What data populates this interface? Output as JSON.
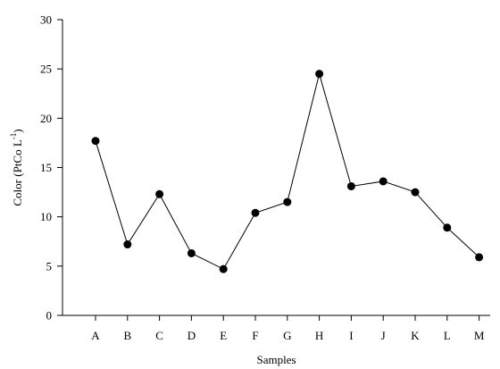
{
  "chart_data": {
    "type": "line",
    "xlabel": "Samples",
    "ylabel": {
      "prefix": "Color (PtCo L",
      "superscript": "-1",
      "suffix": ")"
    },
    "ylim": [
      0,
      30
    ],
    "yticks": [
      "0",
      "5",
      "10",
      "15",
      "20",
      "25",
      "30"
    ],
    "categories": [
      "A",
      "B",
      "C",
      "D",
      "E",
      "F",
      "G",
      "H",
      "I",
      "J",
      "K",
      "L",
      "M"
    ],
    "series": [
      {
        "values": [
          17.7,
          7.2,
          12.3,
          6.3,
          4.7,
          10.4,
          11.5,
          24.5,
          13.1,
          13.6,
          12.5,
          8.9,
          5.9
        ],
        "color": "#000000",
        "marker": "filled-circle"
      }
    ],
    "grid": false,
    "legend": "none"
  }
}
